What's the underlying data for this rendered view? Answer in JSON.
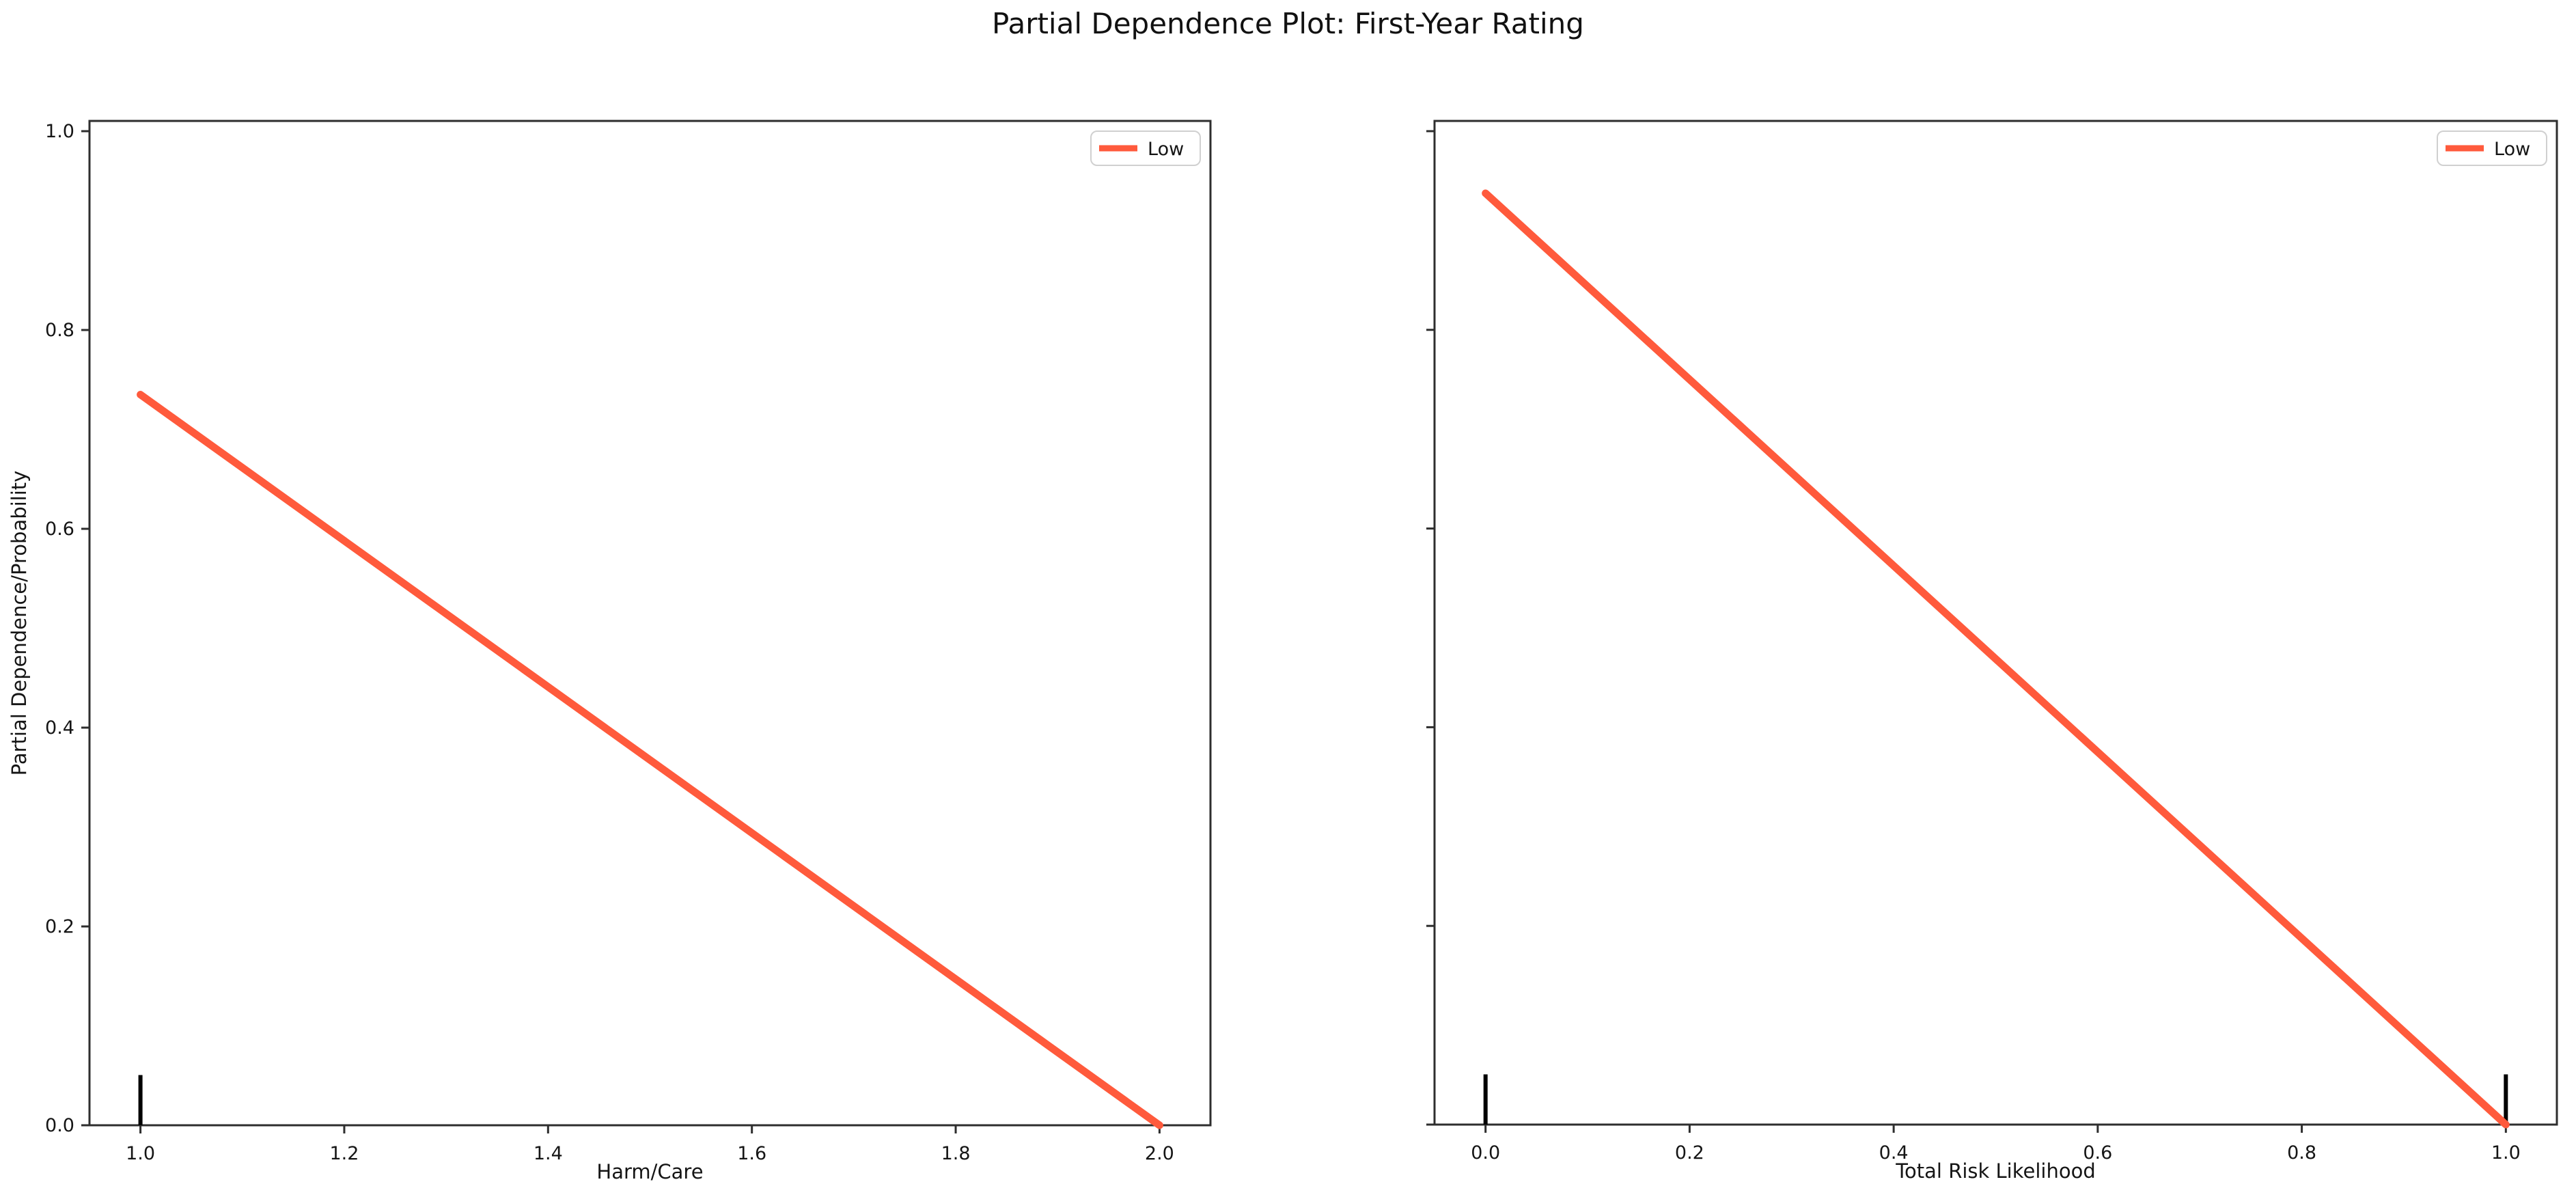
{
  "figure": {
    "title": "Partial Dependence Plot: First-Year Rating",
    "background_color": "#ffffff",
    "spine_color": "#2e2e2e",
    "tick_text_color": "#151515",
    "line_color": "#ff5a3c",
    "rug_color": "#000000",
    "legend_border_color": "#d0d0d0"
  },
  "chart_data": [
    {
      "type": "line",
      "xlabel": "Harm/Care",
      "ylabel": "Partial Dependence/Probability",
      "xlim": [
        0.95,
        2.05
      ],
      "ylim": [
        0.0,
        1.0103
      ],
      "xticks": [
        1.0,
        1.2,
        1.4,
        1.6,
        1.8,
        2.0
      ],
      "yticks": [
        0.0,
        0.2,
        0.4,
        0.6,
        0.8,
        1.0
      ],
      "ytick_labels_visible": true,
      "grid": false,
      "legend": {
        "position": "upper right",
        "entries": [
          "Low"
        ]
      },
      "series": [
        {
          "name": "Low",
          "color": "#ff5a3c",
          "x": [
            1.0,
            2.0
          ],
          "y": [
            0.735,
            0.0
          ]
        }
      ],
      "rug_marks": [
        1.0
      ]
    },
    {
      "type": "line",
      "xlabel": "Total Risk Likelihood",
      "ylabel": "",
      "xlim": [
        -0.05,
        1.05
      ],
      "ylim": [
        0.0,
        1.0103
      ],
      "xticks": [
        0.0,
        0.2,
        0.4,
        0.6,
        0.8,
        1.0
      ],
      "yticks": [
        0.0,
        0.2,
        0.4,
        0.6,
        0.8,
        1.0
      ],
      "ytick_labels_visible": false,
      "grid": false,
      "legend": {
        "position": "upper right",
        "entries": [
          "Low"
        ]
      },
      "series": [
        {
          "name": "Low",
          "color": "#ff5a3c",
          "x": [
            0.0,
            1.0
          ],
          "y": [
            0.9375,
            0.0
          ]
        }
      ],
      "rug_marks": [
        0.0,
        1.0
      ]
    }
  ]
}
